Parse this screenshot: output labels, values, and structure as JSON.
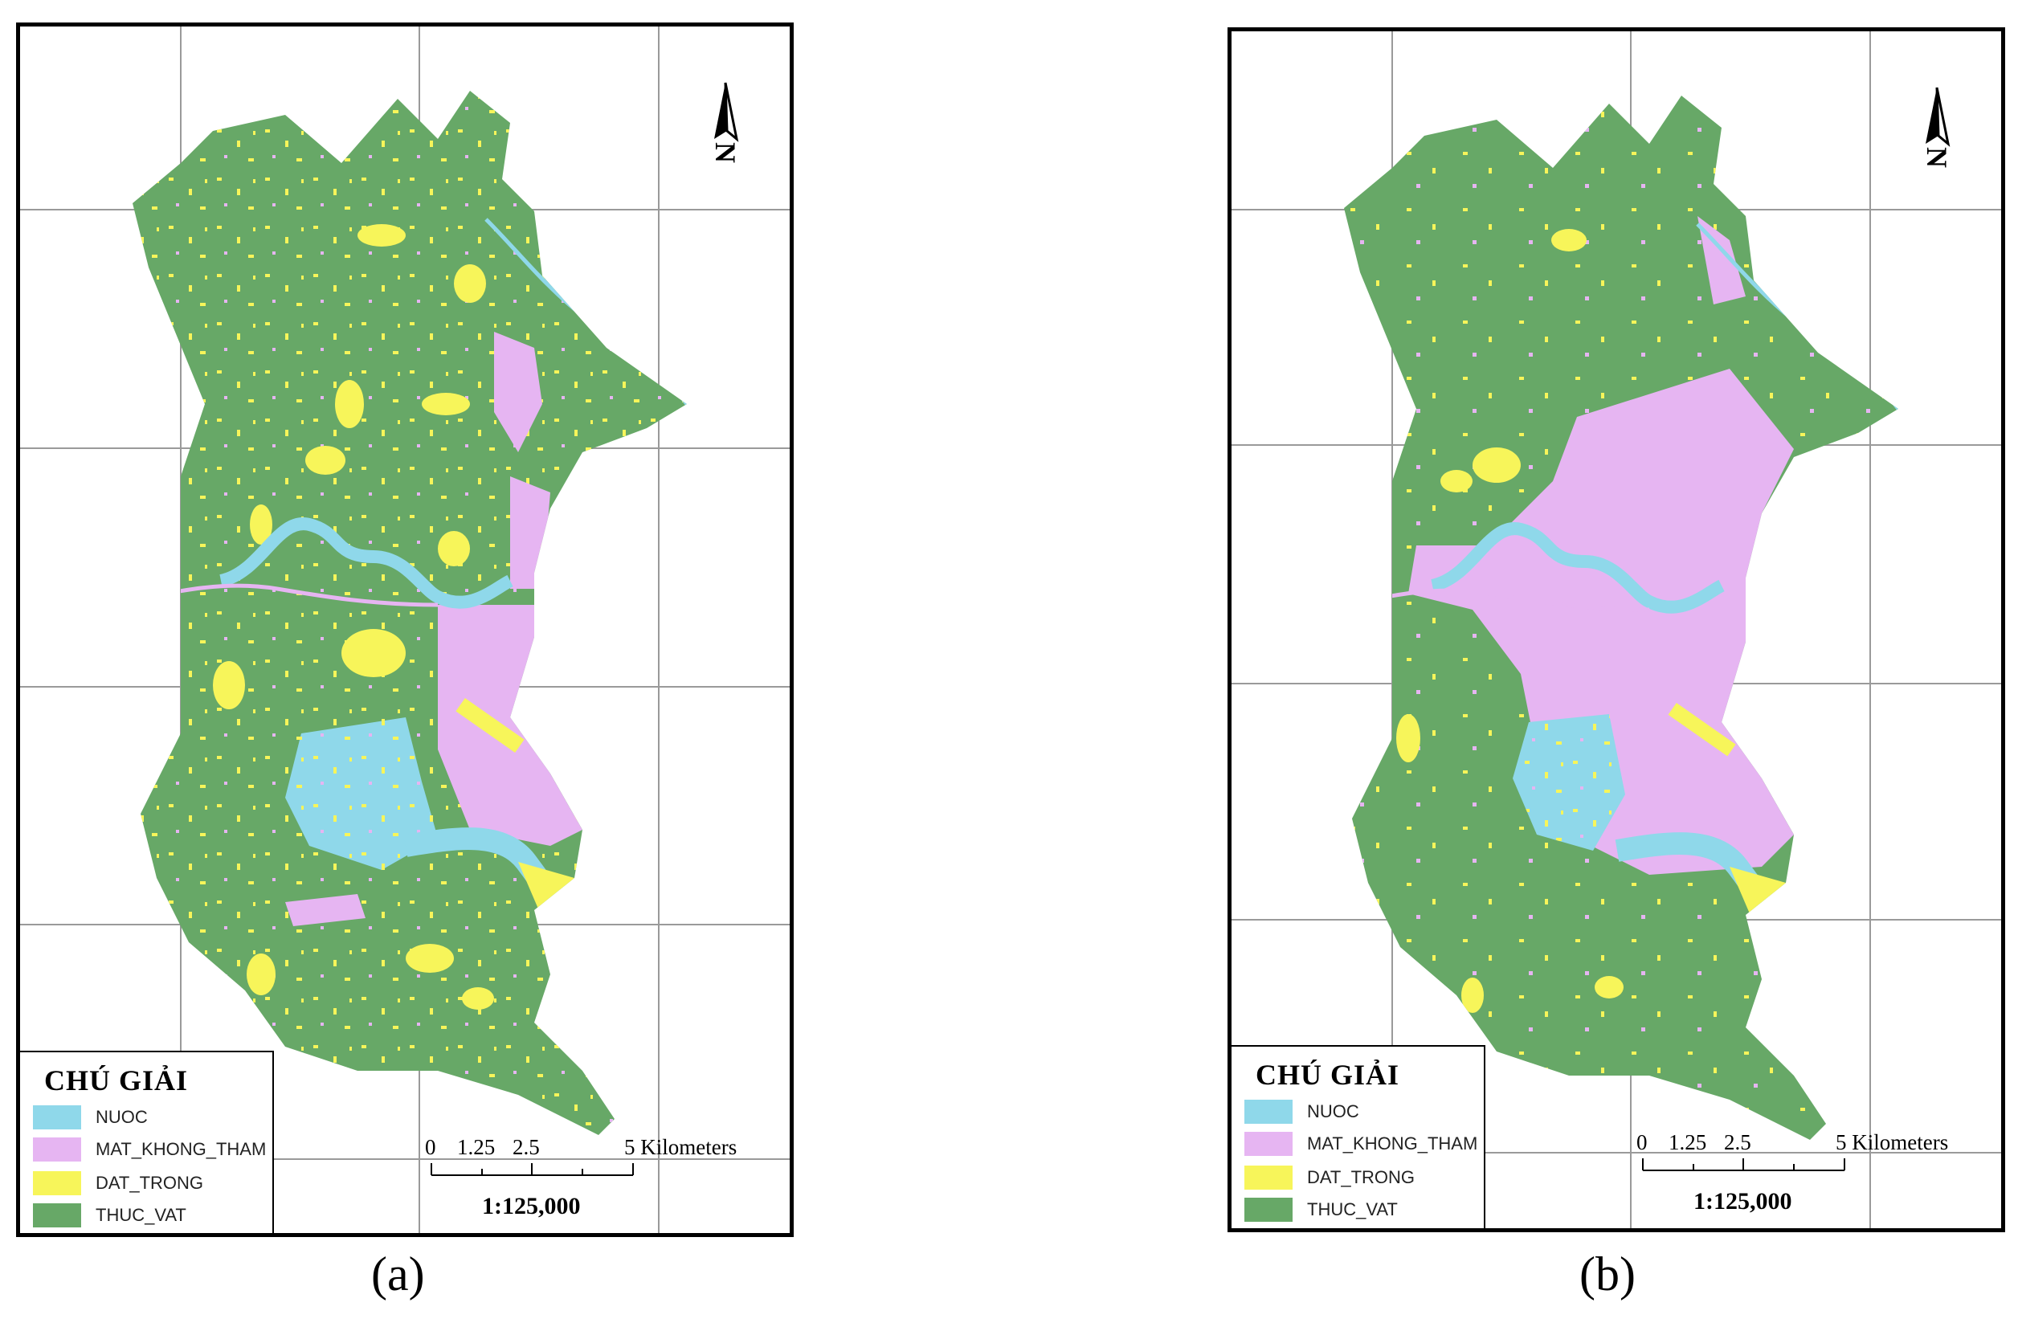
{
  "figure": {
    "panels": [
      {
        "id": "a",
        "caption": "(a)",
        "legend": {
          "title": "CHÚ GIẢI",
          "items": [
            {
              "label": "NUOC",
              "color": "#8fd8ea"
            },
            {
              "label": "MAT_KHONG_THAM",
              "color": "#e6b5f2"
            },
            {
              "label": "DAT_TRONG",
              "color": "#f7f55a"
            },
            {
              "label": "THUC_VAT",
              "color": "#67a867"
            }
          ]
        },
        "scalebar": {
          "ticks": [
            "0",
            "1.25",
            "2.5",
            "5 Kilometers"
          ],
          "ratio": "1:125,000"
        },
        "north_arrow": "north-arrow"
      },
      {
        "id": "b",
        "caption": "(b)",
        "legend": {
          "title": "CHÚ GIẢI",
          "items": [
            {
              "label": "NUOC",
              "color": "#8fd8ea"
            },
            {
              "label": "MAT_KHONG_THAM",
              "color": "#e6b5f2"
            },
            {
              "label": "DAT_TRONG",
              "color": "#f7f55a"
            },
            {
              "label": "THUC_VAT",
              "color": "#67a867"
            }
          ]
        },
        "scalebar": {
          "ticks": [
            "0",
            "1.25",
            "2.5",
            "5 Kilometers"
          ],
          "ratio": "1:125,000"
        },
        "north_arrow": "north-arrow"
      }
    ]
  }
}
